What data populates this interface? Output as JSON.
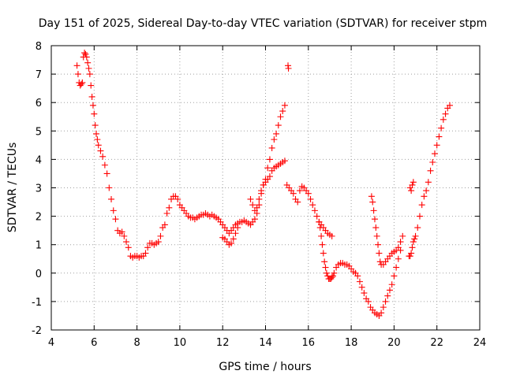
{
  "chart_data": {
    "type": "scatter",
    "title": "Day 151 of 2025, Sidereal Day-to-day VTEC variation (SDTVAR) for receiver stpm",
    "xlabel": "GPS time / hours",
    "ylabel": "SDTVAR / TECUs",
    "xlim": [
      4,
      24
    ],
    "ylim": [
      -2,
      8
    ],
    "xticks": [
      "4",
      "6",
      "8",
      "10",
      "12",
      "14",
      "16",
      "18",
      "20",
      "22",
      "24"
    ],
    "yticks": [
      "-2",
      "-1",
      "0",
      "1",
      "2",
      "3",
      "4",
      "5",
      "6",
      "7",
      "8"
    ],
    "grid": true,
    "marker": "+",
    "color": "#ff0000",
    "series": [
      {
        "x": [
          5.2,
          5.25,
          5.3,
          5.35,
          5.4,
          5.45,
          5.5,
          5.55,
          5.6,
          5.65,
          5.7,
          5.75,
          5.8,
          5.85,
          5.9,
          5.95,
          6.0,
          6.05,
          6.1,
          6.15,
          6.2,
          6.3,
          6.4,
          6.5,
          6.6,
          6.7,
          6.8,
          6.9,
          7.0,
          7.1,
          7.2,
          7.3,
          7.4,
          7.5,
          7.6,
          7.7,
          7.8,
          7.9,
          8.0,
          8.1,
          8.2,
          8.3,
          8.4,
          8.5,
          8.6,
          8.7,
          8.8,
          8.9,
          9.0,
          9.1,
          9.2,
          9.3,
          9.4,
          9.5,
          9.6,
          9.7,
          9.8,
          9.9,
          10.0,
          10.1,
          10.2,
          10.3,
          10.4,
          10.5,
          10.6,
          10.7,
          10.8,
          10.9,
          11.0,
          11.1,
          11.2,
          11.3,
          11.4,
          11.5,
          11.6,
          11.7,
          11.8,
          11.9,
          12.0,
          12.1,
          12.2,
          12.3,
          12.4,
          12.5,
          12.6,
          12.7,
          12.8,
          12.9,
          13.0,
          13.1,
          13.2,
          13.3,
          13.4,
          13.5,
          13.6,
          13.7,
          13.8,
          13.9,
          14.0,
          14.1,
          14.2,
          14.3,
          14.4,
          14.5,
          14.6,
          14.7,
          14.8,
          14.9
        ],
        "y": [
          7.3,
          7.0,
          6.7,
          6.6,
          6.65,
          6.7,
          7.6,
          7.75,
          7.7,
          7.6,
          7.4,
          7.2,
          7.0,
          6.6,
          6.2,
          5.9,
          5.6,
          5.2,
          4.9,
          4.7,
          4.5,
          4.3,
          4.1,
          3.8,
          3.5,
          3.0,
          2.6,
          2.2,
          1.9,
          1.5,
          1.4,
          1.45,
          1.3,
          1.1,
          0.9,
          0.6,
          0.55,
          0.6,
          0.6,
          0.55,
          0.6,
          0.6,
          0.7,
          0.9,
          1.05,
          1.05,
          1.0,
          1.05,
          1.1,
          1.3,
          1.6,
          1.7,
          2.1,
          2.3,
          2.6,
          2.7,
          2.7,
          2.6,
          2.4,
          2.3,
          2.2,
          2.1,
          2.0,
          1.95,
          1.95,
          1.9,
          1.95,
          2.0,
          2.05,
          2.05,
          2.1,
          2.05,
          2.0,
          2.05,
          2.0,
          1.95,
          1.9,
          1.8,
          1.7,
          1.6,
          1.5,
          1.4,
          1.5,
          1.6,
          1.7,
          1.75,
          1.8,
          1.8,
          1.85,
          1.8,
          1.75,
          1.7,
          1.8,
          1.9,
          2.1,
          2.4,
          2.8,
          3.1,
          3.2,
          3.3,
          3.4,
          3.6,
          3.7,
          3.75,
          3.8,
          3.85,
          3.9,
          3.95
        ]
      },
      {
        "x": [
          12.0,
          12.1,
          12.2,
          12.3,
          12.4,
          12.5,
          12.6,
          12.7
        ],
        "y": [
          1.25,
          1.2,
          1.1,
          1.0,
          1.05,
          1.2,
          1.4,
          1.6
        ]
      },
      {
        "x": [
          13.3,
          13.4,
          13.5,
          13.6,
          13.7,
          13.8,
          13.9,
          14.0,
          14.1,
          14.2,
          14.3,
          14.4,
          14.5,
          14.6,
          14.7,
          14.8,
          14.9
        ],
        "y": [
          2.6,
          2.4,
          2.2,
          2.3,
          2.6,
          2.9,
          3.1,
          3.3,
          3.7,
          4.0,
          4.4,
          4.7,
          4.9,
          5.2,
          5.5,
          5.7,
          5.9
        ]
      },
      {
        "x": [
          15.05,
          15.07
        ],
        "y": [
          7.3,
          7.2
        ]
      },
      {
        "x": [
          15.0,
          15.1,
          15.2,
          15.3,
          15.4,
          15.5,
          15.6,
          15.7,
          15.8,
          15.9,
          16.0,
          16.1,
          16.2,
          16.3,
          16.4,
          16.5,
          16.6,
          16.7,
          16.8,
          16.9,
          17.0,
          17.1
        ],
        "y": [
          3.1,
          3.0,
          2.9,
          2.8,
          2.6,
          2.5,
          2.9,
          3.05,
          3.0,
          2.9,
          2.8,
          2.6,
          2.4,
          2.2,
          2.0,
          1.8,
          1.7,
          1.6,
          1.5,
          1.4,
          1.35,
          1.3
        ]
      },
      {
        "x": [
          16.5,
          16.55,
          16.6,
          16.65,
          16.7,
          16.75,
          16.8,
          16.85,
          16.9,
          16.95,
          17.0,
          17.05,
          17.1,
          17.15,
          17.2,
          17.3,
          17.4,
          17.5,
          17.6,
          17.7,
          17.8,
          17.9,
          18.0,
          18.1,
          18.2,
          18.3,
          18.4,
          18.5,
          18.6,
          18.7,
          18.8,
          18.9,
          19.0,
          19.1,
          19.2,
          19.3,
          19.4,
          19.5,
          19.6,
          19.7,
          19.8,
          19.9,
          20.0,
          20.1,
          20.2,
          20.3
        ],
        "y": [
          1.8,
          1.6,
          1.3,
          1.0,
          0.7,
          0.4,
          0.2,
          0.0,
          -0.1,
          -0.2,
          -0.2,
          -0.2,
          -0.15,
          -0.1,
          0.0,
          0.2,
          0.3,
          0.35,
          0.35,
          0.3,
          0.3,
          0.25,
          0.15,
          0.05,
          0.0,
          -0.1,
          -0.3,
          -0.5,
          -0.7,
          -0.9,
          -1.0,
          -1.2,
          -1.3,
          -1.4,
          -1.45,
          -1.5,
          -1.4,
          -1.2,
          -1.0,
          -0.8,
          -0.6,
          -0.4,
          -0.1,
          0.2,
          0.5,
          0.8
        ]
      },
      {
        "x": [
          18.95,
          19.0,
          19.05,
          19.1,
          19.15,
          19.2,
          19.25,
          19.3,
          19.35,
          19.4,
          19.5,
          19.6,
          19.7,
          19.8,
          19.9,
          20.0,
          20.1,
          20.2,
          20.3,
          20.4
        ],
        "y": [
          2.7,
          2.5,
          2.2,
          1.9,
          1.6,
          1.3,
          1.0,
          0.7,
          0.4,
          0.3,
          0.3,
          0.4,
          0.5,
          0.6,
          0.7,
          0.75,
          0.8,
          0.9,
          1.1,
          1.3
        ]
      },
      {
        "x": [
          20.75,
          20.8,
          20.85,
          20.9
        ],
        "y": [
          3.0,
          2.9,
          3.1,
          3.2
        ]
      },
      {
        "x": [
          20.7,
          20.75,
          20.8,
          20.85,
          20.9,
          20.95,
          21.0,
          21.1,
          21.2,
          21.3,
          21.4,
          21.5,
          21.6,
          21.7,
          21.8,
          21.9,
          22.0,
          22.1,
          22.2,
          22.3,
          22.4,
          22.5,
          22.6
        ],
        "y": [
          0.6,
          0.6,
          0.7,
          0.9,
          1.1,
          1.2,
          1.3,
          1.6,
          2.0,
          2.4,
          2.7,
          2.9,
          3.2,
          3.6,
          3.9,
          4.2,
          4.5,
          4.8,
          5.1,
          5.4,
          5.6,
          5.8,
          5.9
        ]
      }
    ]
  }
}
